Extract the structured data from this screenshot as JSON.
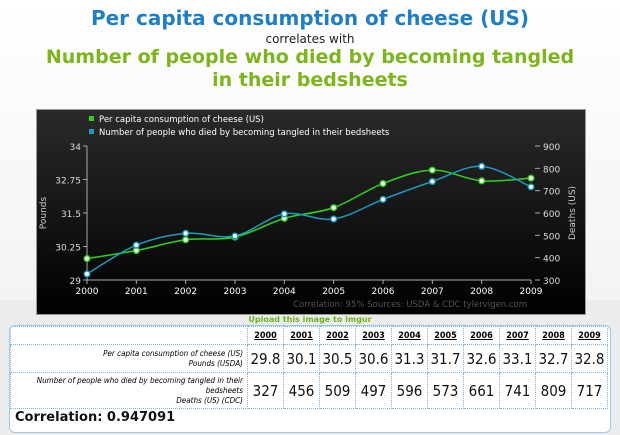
{
  "header": {
    "title1": "Per capita consumption of cheese (US)",
    "connector": "correlates with",
    "title2": "Number of people who died by becoming tangled in their bedsheets"
  },
  "chart_data": {
    "type": "line",
    "categories": [
      "2000",
      "2001",
      "2002",
      "2003",
      "2004",
      "2005",
      "2006",
      "2007",
      "2008",
      "2009"
    ],
    "series": [
      {
        "name": "Per capita consumption of cheese (US)",
        "axis": "left",
        "color": "#2fd31b",
        "values": [
          29.8,
          30.1,
          30.5,
          30.6,
          31.3,
          31.7,
          32.6,
          33.1,
          32.7,
          32.8
        ]
      },
      {
        "name": "Number of people who died by becoming tangled in their bedsheets",
        "axis": "right",
        "color": "#1b9bc4",
        "values": [
          327,
          456,
          509,
          497,
          596,
          573,
          661,
          741,
          809,
          717
        ]
      }
    ],
    "ylabel": "Pounds",
    "y2label": "Deaths (US)",
    "ylim": [
      29,
      34
    ],
    "yticks": [
      "29",
      "30.25",
      "31.5",
      "32.75",
      "34"
    ],
    "y2lim": [
      300,
      900
    ],
    "y2ticks": [
      "300",
      "400",
      "500",
      "600",
      "700",
      "800",
      "900"
    ],
    "legend": "top-left",
    "footer": "Correlation: 95%    Sources: USDA & CDC    tylervigen.com"
  },
  "upload_link": "Upload this image to imgur",
  "table": {
    "years": [
      "2000",
      "2001",
      "2002",
      "2003",
      "2004",
      "2005",
      "2006",
      "2007",
      "2008",
      "2009"
    ],
    "rows": [
      {
        "label": "Per capita consumption of cheese (US)",
        "unit": "Pounds (USDA)",
        "values": [
          "29.8",
          "30.1",
          "30.5",
          "30.6",
          "31.3",
          "31.7",
          "32.6",
          "33.1",
          "32.7",
          "32.8"
        ]
      },
      {
        "label": "Number of people who died by becoming tangled in their bedsheets",
        "unit": "Deaths (US) (CDC)",
        "values": [
          "327",
          "456",
          "509",
          "497",
          "596",
          "573",
          "661",
          "741",
          "809",
          "717"
        ]
      }
    ],
    "correlation": "Correlation: 0.947091"
  }
}
